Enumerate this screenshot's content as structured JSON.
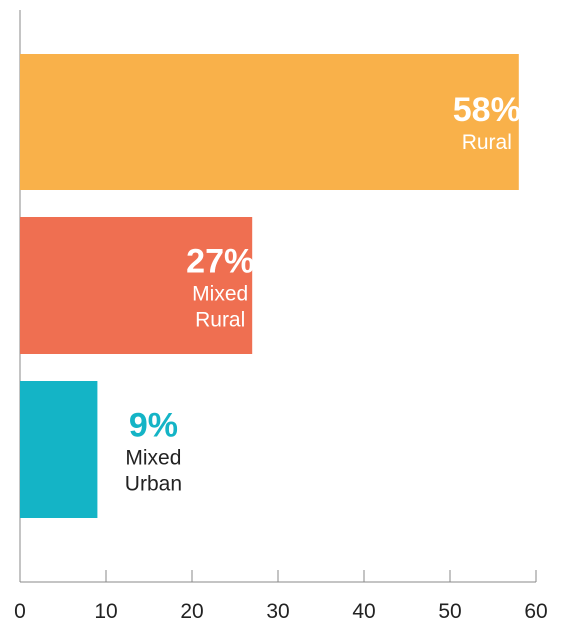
{
  "chart_data": {
    "type": "bar",
    "orientation": "horizontal",
    "title": "",
    "xlabel": "",
    "ylabel": "",
    "xlim": [
      0,
      60
    ],
    "x_ticks": [
      "0",
      "10",
      "20",
      "30",
      "40",
      "50",
      "60"
    ],
    "grid": false,
    "legend": "none",
    "bars": [
      {
        "value": 58,
        "value_label": "58%",
        "category_lines": [
          "Rural"
        ],
        "color": "#F9B14A",
        "label_color": "#ffffff",
        "label_placement": "inside"
      },
      {
        "value": 27,
        "value_label": "27%",
        "category_lines": [
          "Mixed",
          "Rural"
        ],
        "color": "#EF6F51",
        "label_color": "#ffffff",
        "label_placement": "inside"
      },
      {
        "value": 9,
        "value_label": "9%",
        "category_lines": [
          "Mixed",
          "Urban"
        ],
        "color": "#14B4C6",
        "label_color": "#14B4C6",
        "category_color": "#222222",
        "label_placement": "outside"
      }
    ]
  }
}
